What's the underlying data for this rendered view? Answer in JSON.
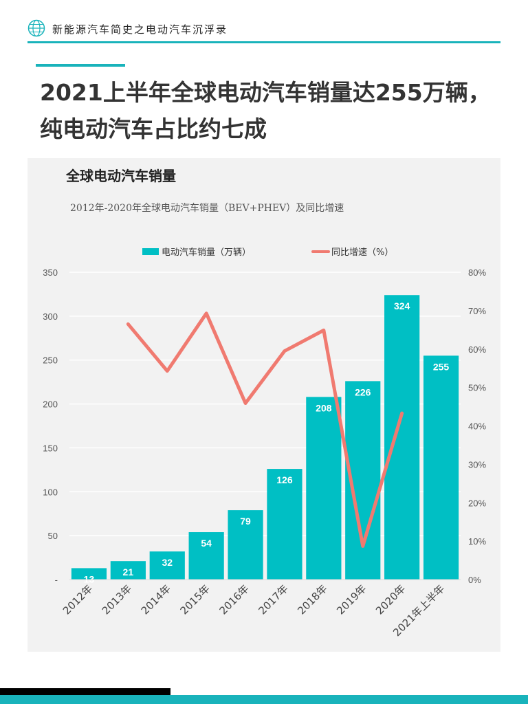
{
  "header": {
    "title": "新能源汽车简史之电动汽车沉浮录"
  },
  "main_title": {
    "line1": "2021上半年全球电动汽车销量达255万辆，",
    "line2": "纯电动汽车占比约七成"
  },
  "panel": {
    "title": "全球电动汽车销量",
    "subtitle": "2012年-2020年全球电动汽车销量（BEV+PHEV）及同比增速"
  },
  "colors": {
    "bar": "#00bfc4",
    "line": "#f07a70",
    "accent": "#19b3bb"
  },
  "chart_data": {
    "type": "bar",
    "categories": [
      "2012年",
      "2013年",
      "2014年",
      "2015年",
      "2016年",
      "2017年",
      "2018年",
      "2019年",
      "2020年",
      "2021年上半年"
    ],
    "series": [
      {
        "name": "电动汽车销量（万辆）",
        "type": "bar",
        "axis": "left",
        "values": [
          13,
          21,
          32,
          54,
          79,
          126,
          208,
          226,
          324,
          255
        ]
      },
      {
        "name": "同比增速（%）",
        "type": "line",
        "axis": "right",
        "values": [
          null,
          66.5,
          54.3,
          69.3,
          45.9,
          59.5,
          64.9,
          8.7,
          43.3,
          null
        ]
      }
    ],
    "y_left": {
      "lim": [
        0,
        350
      ],
      "ticks": [
        "-",
        "50",
        "100",
        "150",
        "200",
        "250",
        "300",
        "350"
      ]
    },
    "y_right": {
      "lim": [
        0,
        80
      ],
      "ticks": [
        "0%",
        "10%",
        "20%",
        "30%",
        "40%",
        "50%",
        "60%",
        "70%",
        "80%"
      ]
    },
    "grid": true,
    "legend_position": "top"
  }
}
